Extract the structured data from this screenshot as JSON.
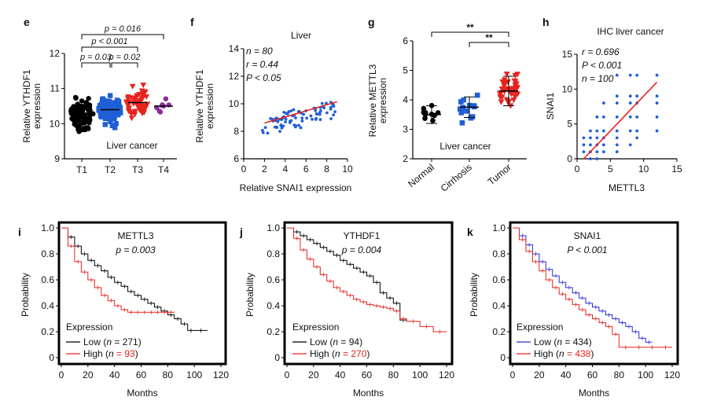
{
  "charts": [
    {
      "panel": "e",
      "type": "scatter",
      "ylabel": "Relative YTHDF1 expression",
      "annotation": "Liver cancer",
      "categories": [
        "T1",
        "T2",
        "T3",
        "T4"
      ],
      "ylim": [
        9,
        12
      ],
      "yticks": [
        "9",
        "10",
        "11",
        "12"
      ],
      "colors": [
        "#000000",
        "#1f5fd6",
        "#e8231e",
        "#8b2c96"
      ],
      "markers": [
        "circle",
        "square",
        "triangle-down",
        "circle"
      ],
      "groups": [
        {
          "name": "T1",
          "n": 90,
          "mean": 10.3,
          "sd": 0.35
        },
        {
          "name": "T2",
          "n": 90,
          "mean": 10.4,
          "sd": 0.3
        },
        {
          "name": "T3",
          "n": 55,
          "mean": 10.6,
          "sd": 0.35
        },
        {
          "name": "T4",
          "n": 8,
          "mean": 10.5,
          "sd": 0.15
        }
      ],
      "comparisons": [
        {
          "from": "T1",
          "to": "T2",
          "label": "p = 0.03"
        },
        {
          "from": "T2",
          "to": "T3",
          "label": "p = 0.02"
        },
        {
          "from": "T1",
          "to": "T3",
          "label": "p < 0.001"
        },
        {
          "from": "T1",
          "to": "T4",
          "label": "p = 0.016"
        }
      ]
    },
    {
      "panel": "f",
      "type": "scatter",
      "title": "Liver",
      "xlabel": "Relative SNAI1 expression",
      "ylabel": "Relative YTHDF1 expression",
      "xlim": [
        0,
        10
      ],
      "ylim": [
        6,
        14
      ],
      "xticks": [
        "0",
        "2",
        "4",
        "6",
        "8",
        "10"
      ],
      "yticks": [
        "6",
        "8",
        "10",
        "12",
        "14"
      ],
      "stats": [
        "n = 80",
        "r = 0.44",
        "P < 0.05"
      ],
      "point_color": "#1f5fd6",
      "fit_color": "#e8231e",
      "fit": {
        "x": [
          2,
          9
        ],
        "y": [
          8.6,
          10.15
        ]
      },
      "n_points": 80
    },
    {
      "panel": "g",
      "type": "scatter",
      "ylabel": "Relative METTL3 expression",
      "annotation": "Liver cancer",
      "categories": [
        "Normal",
        "Cirrhosis",
        "Tumor"
      ],
      "ylim": [
        2,
        6
      ],
      "yticks": [
        "2",
        "3",
        "4",
        "5",
        "6"
      ],
      "colors": [
        "#000000",
        "#1f5fd6",
        "#e8231e"
      ],
      "markers": [
        "circle",
        "square",
        "triangle-down"
      ],
      "groups": [
        {
          "name": "Normal",
          "n": 10,
          "mean": 3.5,
          "sd": 0.3
        },
        {
          "name": "Cirrhosis",
          "n": 14,
          "mean": 3.75,
          "sd": 0.35
        },
        {
          "name": "Tumor",
          "n": 40,
          "mean": 4.3,
          "sd": 0.5
        }
      ],
      "comparisons": [
        {
          "from": "Normal",
          "to": "Tumor",
          "label": "**"
        },
        {
          "from": "Cirrhosis",
          "to": "Tumor",
          "label": "**"
        }
      ]
    },
    {
      "panel": "h",
      "type": "scatter",
      "title": "IHC liver cancer",
      "xlabel": "METTL3",
      "ylabel": "SNAI1",
      "xlim": [
        0,
        15
      ],
      "ylim": [
        0,
        15
      ],
      "xticks": [
        "0",
        "5",
        "10",
        "15"
      ],
      "yticks": [
        "0",
        "5",
        "10",
        "15"
      ],
      "stats": [
        "r = 0.696",
        "P < 0.001",
        "n = 100"
      ],
      "point_color": "#1f5fd6",
      "fit_color": "#e8231e",
      "fit": {
        "x": [
          1,
          12
        ],
        "y": [
          0,
          11
        ]
      },
      "columns": [
        {
          "x": 1,
          "y": [
            1,
            2,
            3
          ]
        },
        {
          "x": 2,
          "y": [
            0,
            1,
            2,
            3,
            4
          ]
        },
        {
          "x": 3,
          "y": [
            0,
            1,
            2,
            3,
            4,
            6
          ]
        },
        {
          "x": 4,
          "y": [
            1,
            2,
            3,
            4,
            6,
            8
          ]
        },
        {
          "x": 6,
          "y": [
            1,
            2,
            3,
            4,
            6,
            8,
            9,
            12
          ]
        },
        {
          "x": 8,
          "y": [
            2,
            4,
            6,
            8,
            9,
            12
          ]
        },
        {
          "x": 9,
          "y": [
            3,
            4,
            6,
            8,
            9,
            12
          ]
        },
        {
          "x": 12,
          "y": [
            4,
            6,
            8,
            9,
            12
          ]
        }
      ]
    },
    {
      "panel": "i",
      "type": "line",
      "title": "METTL3",
      "pvalue": "p = 0.003",
      "xlabel": "Months",
      "ylabel": "Probability",
      "xlim": [
        0,
        120
      ],
      "ylim": [
        0,
        1
      ],
      "xticks": [
        "0",
        "20",
        "40",
        "60",
        "80",
        "100",
        "120"
      ],
      "yticks": [
        "0",
        "0.2",
        "0.4",
        "0.6",
        "0.8",
        "1.0"
      ],
      "legend_title": "Expression",
      "series": [
        {
          "name": "Low",
          "n": "271",
          "color": "#000000",
          "x": [
            0,
            5,
            10,
            15,
            20,
            25,
            30,
            35,
            40,
            45,
            50,
            55,
            60,
            65,
            70,
            75,
            80,
            85,
            90,
            95,
            100,
            110
          ],
          "y": [
            1.0,
            0.93,
            0.86,
            0.8,
            0.75,
            0.71,
            0.67,
            0.62,
            0.58,
            0.55,
            0.51,
            0.48,
            0.45,
            0.42,
            0.39,
            0.36,
            0.33,
            0.3,
            0.26,
            0.21,
            0.21,
            0.21
          ]
        },
        {
          "name": "High",
          "n": "93",
          "color": "#e8231e",
          "x": [
            0,
            5,
            10,
            15,
            20,
            25,
            30,
            35,
            40,
            45,
            50,
            55,
            60,
            65,
            70,
            75,
            80,
            85
          ],
          "y": [
            1.0,
            0.86,
            0.74,
            0.66,
            0.6,
            0.54,
            0.48,
            0.44,
            0.4,
            0.37,
            0.35,
            0.35,
            0.35,
            0.35,
            0.35,
            0.35,
            0.35,
            0.35
          ]
        }
      ]
    },
    {
      "panel": "j",
      "type": "line",
      "title": "YTHDF1",
      "pvalue": "p = 0.004",
      "xlabel": "Months",
      "ylabel": "Probability",
      "xlim": [
        0,
        120
      ],
      "ylim": [
        0,
        1
      ],
      "xticks": [
        "0",
        "20",
        "40",
        "60",
        "80",
        "100",
        "120"
      ],
      "yticks": [
        "0",
        "0.2",
        "0.4",
        "0.6",
        "0.8",
        "1.0"
      ],
      "legend_title": "Expression",
      "series": [
        {
          "name": "Low",
          "n": "94",
          "color": "#000000",
          "x": [
            0,
            5,
            10,
            15,
            20,
            25,
            30,
            35,
            40,
            45,
            50,
            55,
            60,
            65,
            70,
            75,
            80,
            85,
            90
          ],
          "y": [
            1.0,
            0.97,
            0.94,
            0.91,
            0.88,
            0.85,
            0.82,
            0.79,
            0.75,
            0.72,
            0.69,
            0.66,
            0.63,
            0.58,
            0.5,
            0.46,
            0.42,
            0.29,
            0.29
          ]
        },
        {
          "name": "High",
          "n": "270",
          "color": "#e8231e",
          "x": [
            0,
            5,
            10,
            15,
            20,
            25,
            30,
            35,
            40,
            45,
            50,
            55,
            60,
            65,
            70,
            75,
            80,
            85,
            90,
            100,
            110,
            120
          ],
          "y": [
            1.0,
            0.92,
            0.83,
            0.76,
            0.7,
            0.64,
            0.59,
            0.54,
            0.51,
            0.48,
            0.45,
            0.43,
            0.41,
            0.4,
            0.39,
            0.38,
            0.36,
            0.3,
            0.28,
            0.24,
            0.2,
            0.2
          ]
        }
      ]
    },
    {
      "panel": "k",
      "type": "line",
      "title": "SNAI1",
      "pvalue": "P < 0.001",
      "xlabel": "Months",
      "ylabel": "Probability",
      "xlim": [
        0,
        120
      ],
      "ylim": [
        0,
        1
      ],
      "xticks": [
        "0",
        "20",
        "40",
        "60",
        "80",
        "100",
        "120"
      ],
      "yticks": [
        "0",
        "0.2",
        "0.4",
        "0.6",
        "0.8",
        "1.0"
      ],
      "legend_title": "Expression",
      "series": [
        {
          "name": "Low",
          "n": "434",
          "color": "#2b2bd6",
          "x": [
            0,
            5,
            10,
            15,
            20,
            25,
            30,
            35,
            40,
            45,
            50,
            55,
            60,
            65,
            70,
            75,
            80,
            85,
            90,
            95,
            100,
            105
          ],
          "y": [
            1.0,
            0.94,
            0.87,
            0.8,
            0.74,
            0.68,
            0.63,
            0.58,
            0.54,
            0.5,
            0.46,
            0.42,
            0.39,
            0.36,
            0.33,
            0.3,
            0.27,
            0.24,
            0.2,
            0.15,
            0.12,
            0.12
          ]
        },
        {
          "name": "High",
          "n": "438",
          "color": "#e8231e",
          "x": [
            0,
            5,
            10,
            15,
            20,
            25,
            30,
            35,
            40,
            45,
            50,
            55,
            60,
            65,
            70,
            75,
            80,
            90,
            100,
            110,
            120
          ],
          "y": [
            1.0,
            0.91,
            0.82,
            0.74,
            0.67,
            0.6,
            0.54,
            0.49,
            0.45,
            0.41,
            0.37,
            0.33,
            0.3,
            0.27,
            0.24,
            0.18,
            0.08,
            0.08,
            0.08,
            0.08,
            0.08
          ]
        }
      ]
    }
  ]
}
